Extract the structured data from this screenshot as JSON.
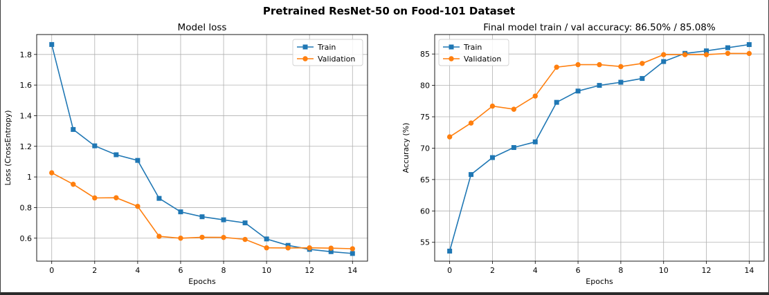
{
  "figure": {
    "suptitle": "Pretrained ResNet-50 on Food-101 Dataset"
  },
  "chart_data": [
    {
      "type": "line",
      "title": "Model loss",
      "xlabel": "Epochs",
      "ylabel": "Loss (CrossEntropy)",
      "x": [
        0,
        1,
        2,
        3,
        4,
        5,
        6,
        7,
        8,
        9,
        10,
        11,
        12,
        13,
        14
      ],
      "xticks": [
        0,
        2,
        4,
        6,
        8,
        10,
        12,
        14
      ],
      "yticks": [
        0.6,
        0.8,
        1.0,
        1.2,
        1.4,
        1.6,
        1.8
      ],
      "xlim": [
        -0.7,
        14.7
      ],
      "ylim": [
        0.45,
        1.93
      ],
      "grid": true,
      "legend_position": "top-right",
      "series": [
        {
          "name": "Train",
          "color": "#1f77b4",
          "marker": "square",
          "values": [
            1.865,
            1.31,
            1.203,
            1.145,
            1.108,
            0.86,
            0.772,
            0.74,
            0.72,
            0.7,
            0.595,
            0.553,
            0.527,
            0.512,
            0.5
          ]
        },
        {
          "name": "Validation",
          "color": "#ff7f0e",
          "marker": "circle",
          "values": [
            1.027,
            0.952,
            0.863,
            0.864,
            0.808,
            0.612,
            0.6,
            0.606,
            0.605,
            0.592,
            0.537,
            0.536,
            0.537,
            0.535,
            0.531
          ]
        }
      ]
    },
    {
      "type": "line",
      "title": "Final model train / val accuracy: 86.50% / 85.08%",
      "xlabel": "Epochs",
      "ylabel": "Accuracy (%)",
      "x": [
        0,
        1,
        2,
        3,
        4,
        5,
        6,
        7,
        8,
        9,
        10,
        11,
        12,
        13,
        14
      ],
      "xticks": [
        0,
        2,
        4,
        6,
        8,
        10,
        12,
        14
      ],
      "yticks": [
        55,
        60,
        65,
        70,
        75,
        80,
        85
      ],
      "xlim": [
        -0.7,
        14.7
      ],
      "ylim": [
        52.0,
        88.1
      ],
      "grid": true,
      "legend_position": "top-left",
      "series": [
        {
          "name": "Train",
          "color": "#1f77b4",
          "marker": "square",
          "values": [
            53.6,
            65.8,
            68.5,
            70.1,
            71.0,
            77.3,
            79.1,
            80.0,
            80.5,
            81.1,
            83.8,
            85.1,
            85.5,
            86.0,
            86.5
          ]
        },
        {
          "name": "Validation",
          "color": "#ff7f0e",
          "marker": "circle",
          "values": [
            71.8,
            74.0,
            76.7,
            76.2,
            78.3,
            82.9,
            83.3,
            83.3,
            83.0,
            83.5,
            84.9,
            84.9,
            84.9,
            85.1,
            85.08
          ]
        }
      ]
    }
  ]
}
